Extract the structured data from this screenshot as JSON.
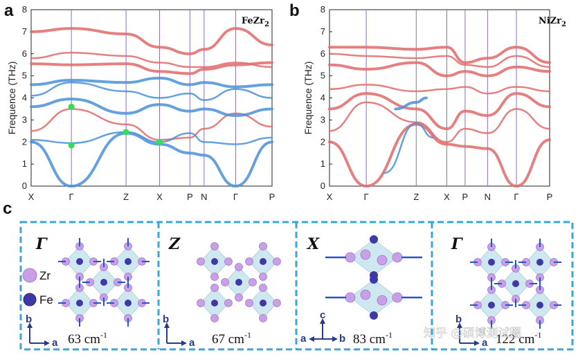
{
  "panels": {
    "a": "a",
    "b": "b",
    "c": "c"
  },
  "chart_data": [
    {
      "type": "line",
      "panel": "a",
      "title": "FeZr2",
      "ylabel": "Frequence (THz)",
      "ylim": [
        0,
        8
      ],
      "yticks": [
        "0",
        "1",
        "2",
        "3",
        "4",
        "5",
        "6",
        "7",
        "8"
      ],
      "kpoints": [
        "X",
        "Γ",
        "Z",
        "X",
        "P",
        "N",
        "Γ",
        "P"
      ],
      "kpos": [
        0,
        0.167,
        0.394,
        0.533,
        0.659,
        0.718,
        0.849,
        1.0
      ],
      "series": [
        {
          "name": "red-1",
          "color": "#e06a6a",
          "values": [
            [
              0,
              7.0
            ],
            [
              0.167,
              7.15
            ],
            [
              0.394,
              6.9
            ],
            [
              0.533,
              6.3
            ],
            [
              0.659,
              6.0
            ],
            [
              0.718,
              6.2
            ],
            [
              0.849,
              7.15
            ],
            [
              1.0,
              6.4
            ]
          ]
        },
        {
          "name": "red-2",
          "color": "#e06a6a",
          "values": [
            [
              0,
              5.8
            ],
            [
              0.167,
              6.05
            ],
            [
              0.394,
              5.9
            ],
            [
              0.533,
              5.6
            ],
            [
              0.659,
              5.4
            ],
            [
              0.718,
              5.4
            ],
            [
              0.849,
              5.6
            ],
            [
              1.0,
              5.4
            ]
          ]
        },
        {
          "name": "red-3",
          "color": "#e06a6a",
          "values": [
            [
              0,
              5.55
            ],
            [
              0.167,
              5.5
            ],
            [
              0.394,
              5.55
            ],
            [
              0.533,
              5.2
            ],
            [
              0.659,
              5.1
            ],
            [
              0.718,
              5.3
            ],
            [
              0.849,
              5.5
            ],
            [
              1.0,
              5.6
            ]
          ]
        },
        {
          "name": "red-4",
          "color": "#e06a6a",
          "values": [
            [
              0,
              2.5
            ],
            [
              0.167,
              3.5
            ],
            [
              0.394,
              2.8
            ],
            [
              0.533,
              2.1
            ],
            [
              0.659,
              2.2
            ],
            [
              0.718,
              2.6
            ],
            [
              0.849,
              3.3
            ],
            [
              1.0,
              2.7
            ]
          ]
        },
        {
          "name": "blue-1",
          "color": "#4a90d9",
          "values": [
            [
              0,
              4.6
            ],
            [
              0.167,
              4.8
            ],
            [
              0.394,
              4.7
            ],
            [
              0.533,
              4.9
            ],
            [
              0.659,
              4.6
            ],
            [
              0.718,
              4.7
            ],
            [
              0.849,
              4.5
            ],
            [
              1.0,
              4.6
            ]
          ]
        },
        {
          "name": "blue-2",
          "color": "#4a90d9",
          "values": [
            [
              0,
              4.1
            ],
            [
              0.167,
              4.7
            ],
            [
              0.394,
              4.3
            ],
            [
              0.533,
              4.0
            ],
            [
              0.659,
              4.2
            ],
            [
              0.718,
              3.9
            ],
            [
              0.849,
              4.4
            ],
            [
              1.0,
              4.0
            ]
          ]
        },
        {
          "name": "blue-3",
          "color": "#4a90d9",
          "values": [
            [
              0,
              3.6
            ],
            [
              0.167,
              3.95
            ],
            [
              0.394,
              3.3
            ],
            [
              0.533,
              3.7
            ],
            [
              0.659,
              3.4
            ],
            [
              0.718,
              3.5
            ],
            [
              0.849,
              3.2
            ],
            [
              1.0,
              3.5
            ]
          ]
        },
        {
          "name": "blue-4",
          "color": "#4a90d9",
          "values": [
            [
              0,
              2.1
            ],
            [
              0.167,
              1.95
            ],
            [
              0.394,
              2.45
            ],
            [
              0.533,
              2.0
            ],
            [
              0.659,
              2.4
            ],
            [
              0.718,
              2.0
            ],
            [
              0.849,
              1.9
            ],
            [
              1.0,
              2.2
            ]
          ]
        },
        {
          "name": "blue-acoustic",
          "color": "#4a90d9",
          "values": [
            [
              0,
              2.0
            ],
            [
              0.167,
              0
            ],
            [
              0.394,
              2.4
            ],
            [
              0.533,
              1.9
            ],
            [
              0.659,
              1.5
            ],
            [
              0.718,
              1.4
            ],
            [
              0.849,
              0
            ],
            [
              1.0,
              2.0
            ]
          ]
        }
      ],
      "highlight_points": [
        [
          0.167,
          3.6
        ],
        [
          0.167,
          1.85
        ],
        [
          0.394,
          2.45
        ],
        [
          0.533,
          2.0
        ]
      ]
    },
    {
      "type": "line",
      "panel": "b",
      "title": "NiZr2",
      "ylabel": "Frequence (THz)",
      "ylim": [
        0,
        8
      ],
      "yticks": [
        "0",
        "1",
        "2",
        "3",
        "4",
        "5",
        "6",
        "7",
        "8"
      ],
      "kpoints": [
        "X",
        "Γ",
        "Z",
        "X",
        "P",
        "N",
        "Γ",
        "P"
      ],
      "kpos": [
        0,
        0.167,
        0.394,
        0.533,
        0.616,
        0.718,
        0.849,
        1.0
      ],
      "series": [
        {
          "name": "red-1",
          "color": "#e06a6a",
          "values": [
            [
              0,
              6.3
            ],
            [
              0.167,
              6.3
            ],
            [
              0.394,
              6.2
            ],
            [
              0.533,
              6.3
            ],
            [
              0.616,
              5.6
            ],
            [
              0.718,
              5.8
            ],
            [
              0.849,
              6.3
            ],
            [
              1.0,
              5.6
            ]
          ]
        },
        {
          "name": "red-2",
          "color": "#e06a6a",
          "values": [
            [
              0,
              6.0
            ],
            [
              0.167,
              5.9
            ],
            [
              0.394,
              5.8
            ],
            [
              0.533,
              5.9
            ],
            [
              0.616,
              5.5
            ],
            [
              0.718,
              5.4
            ],
            [
              0.849,
              5.9
            ],
            [
              1.0,
              5.4
            ]
          ]
        },
        {
          "name": "red-3",
          "color": "#e06a6a",
          "values": [
            [
              0,
              5.5
            ],
            [
              0.167,
              5.3
            ],
            [
              0.394,
              5.6
            ],
            [
              0.533,
              5.0
            ],
            [
              0.616,
              5.2
            ],
            [
              0.718,
              5.0
            ],
            [
              0.849,
              5.4
            ],
            [
              1.0,
              5.2
            ]
          ]
        },
        {
          "name": "red-4",
          "color": "#e06a6a",
          "values": [
            [
              0,
              4.4
            ],
            [
              0.167,
              4.6
            ],
            [
              0.394,
              4.3
            ],
            [
              0.533,
              4.4
            ],
            [
              0.616,
              4.5
            ],
            [
              0.718,
              4.2
            ],
            [
              0.849,
              4.5
            ],
            [
              1.0,
              4.3
            ]
          ]
        },
        {
          "name": "red-5",
          "color": "#e06a6a",
          "values": [
            [
              0,
              3.5
            ],
            [
              0.167,
              4.2
            ],
            [
              0.394,
              3.5
            ],
            [
              0.533,
              2.6
            ],
            [
              0.616,
              3.4
            ],
            [
              0.718,
              3.2
            ],
            [
              0.849,
              4.2
            ],
            [
              1.0,
              3.6
            ]
          ]
        },
        {
          "name": "red-6",
          "color": "#e06a6a",
          "values": [
            [
              0,
              2.5
            ],
            [
              0.167,
              3.8
            ],
            [
              0.394,
              2.9
            ],
            [
              0.533,
              2.0
            ],
            [
              0.616,
              2.6
            ],
            [
              0.718,
              2.4
            ],
            [
              0.849,
              3.5
            ],
            [
              1.0,
              2.6
            ]
          ]
        },
        {
          "name": "red-acoustic",
          "color": "#e06a6a",
          "values": [
            [
              0,
              2.0
            ],
            [
              0.167,
              0
            ],
            [
              0.394,
              2.8
            ],
            [
              0.533,
              1.9
            ],
            [
              0.616,
              1.8
            ],
            [
              0.718,
              1.7
            ],
            [
              0.849,
              0
            ],
            [
              1.0,
              2.1
            ]
          ]
        },
        {
          "name": "blue-1",
          "color": "#4a90d9",
          "values": [
            [
              0.25,
              0.6
            ],
            [
              0.394,
              2.85
            ],
            [
              0.47,
              2.2
            ]
          ]
        },
        {
          "name": "blue-2",
          "color": "#4a90d9",
          "values": [
            [
              0.3,
              3.5
            ],
            [
              0.394,
              3.8
            ],
            [
              0.44,
              4.0
            ]
          ]
        }
      ],
      "highlight_points": []
    }
  ],
  "modes": [
    {
      "symbol": "Γ",
      "freq": "63 cm",
      "unit_sup": "-1",
      "axis_v": "b",
      "axis_h": "a"
    },
    {
      "symbol": "Z",
      "freq": "67 cm",
      "unit_sup": "-1",
      "axis_v": "b",
      "axis_h": "a"
    },
    {
      "symbol": "X",
      "freq": "83 cm",
      "unit_sup": "-1",
      "axis_v": "c",
      "axis_h": "b",
      "axis_h2": "a"
    },
    {
      "symbol": "Γ",
      "freq": "122 cm",
      "unit_sup": "-1",
      "axis_v": "b",
      "axis_h": "a"
    }
  ],
  "legend": {
    "zr": "Zr",
    "fe": "Fe"
  },
  "watermark": "知乎 @硕博测试圈",
  "colors": {
    "red": "#e06a6a",
    "blue": "#4a90d9",
    "green": "#33dd55",
    "dash": "#3aa6d8",
    "zr": "#c9a0e8",
    "fe": "#3d3aa8",
    "kline": "#8b6cc8"
  }
}
